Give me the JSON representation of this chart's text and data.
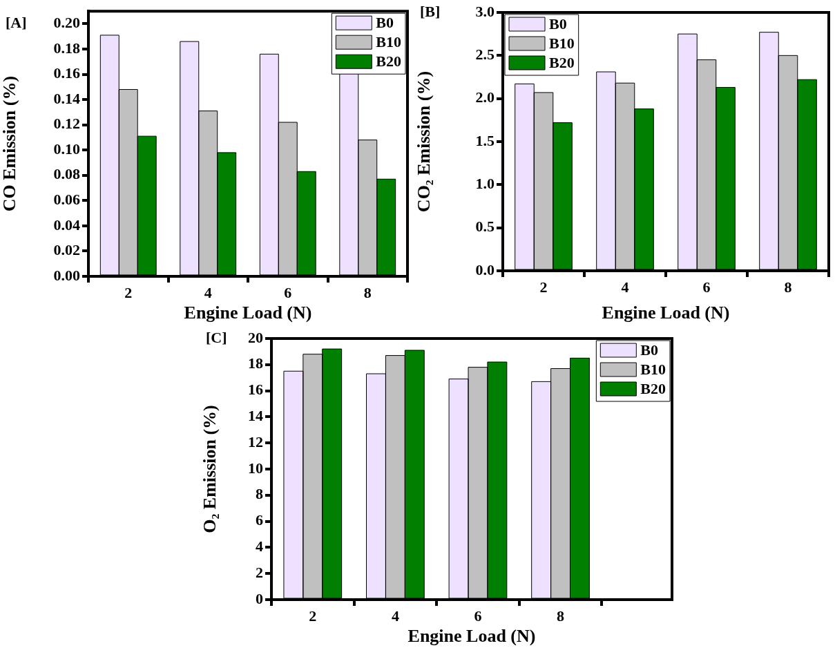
{
  "chart_data": [
    {
      "type": "bar",
      "title": "[A]",
      "xlabel": "Engine Load (N)",
      "ylabel": "CO Emission (%)",
      "x": [
        2,
        4,
        6,
        8
      ],
      "xlim": [
        1,
        9
      ],
      "xticks": [
        2,
        4,
        6,
        8
      ],
      "ylim": [
        0,
        0.21
      ],
      "yticks": [
        {
          "value": 0,
          "label": "0.00"
        },
        0.02,
        0.04,
        0.06,
        0.08,
        {
          "value": 0.1,
          "label": "0.10"
        },
        0.12,
        0.14,
        0.16,
        0.18,
        {
          "value": 0.2,
          "label": "0.20"
        }
      ],
      "legend": "top right",
      "series": [
        {
          "name": "B0",
          "color": "#eee0ff",
          "values": [
            0.191,
            0.186,
            0.176,
            0.164
          ]
        },
        {
          "name": "B10",
          "color": "#c0c0c0",
          "values": [
            0.148,
            0.131,
            0.122,
            0.108
          ]
        },
        {
          "name": "B20",
          "color": "#007f00",
          "values": [
            0.111,
            0.098,
            0.083,
            0.077
          ]
        }
      ]
    },
    {
      "type": "bar",
      "title": "[B]",
      "xlabel": "Engine Load (N)",
      "ylabel": "CO₂ Emission (%)",
      "x": [
        2,
        4,
        6,
        8
      ],
      "xlim": [
        1,
        9
      ],
      "xticks": [
        2,
        4,
        6,
        8
      ],
      "ylim": [
        0,
        3.0
      ],
      "yticks": [
        {
          "value": 0,
          "label": "0.0"
        },
        0.5,
        {
          "value": 1,
          "label": "1.0"
        },
        1.5,
        {
          "value": 2,
          "label": "2.0"
        },
        2.5,
        {
          "value": 3,
          "label": "3.0"
        }
      ],
      "legend": "top left",
      "series": [
        {
          "name": "B0",
          "color": "#eee0ff",
          "values": [
            2.17,
            2.31,
            2.75,
            2.77
          ]
        },
        {
          "name": "B10",
          "color": "#c0c0c0",
          "values": [
            2.07,
            2.18,
            2.45,
            2.5
          ]
        },
        {
          "name": "B20",
          "color": "#007f00",
          "values": [
            1.72,
            1.88,
            2.13,
            2.22
          ]
        }
      ]
    },
    {
      "type": "bar",
      "title": "[C]",
      "xlabel": "Engine Load (N)",
      "ylabel": "O₂ Emission (%)",
      "x": [
        2,
        4,
        6,
        8
      ],
      "xlim": [
        1,
        10.7
      ],
      "xticks": [
        2,
        4,
        6,
        8
      ],
      "ylim": [
        0,
        20
      ],
      "yticks": [
        0,
        2,
        4,
        6,
        8,
        10,
        12,
        14,
        16,
        18,
        20
      ],
      "legend": "top right",
      "series": [
        {
          "name": "B0",
          "color": "#eee0ff",
          "values": [
            17.5,
            17.3,
            16.9,
            16.7
          ]
        },
        {
          "name": "B10",
          "color": "#c0c0c0",
          "values": [
            18.8,
            18.7,
            17.8,
            17.7
          ]
        },
        {
          "name": "B20",
          "color": "#007f00",
          "values": [
            19.2,
            19.1,
            18.2,
            18.5
          ]
        }
      ]
    }
  ]
}
